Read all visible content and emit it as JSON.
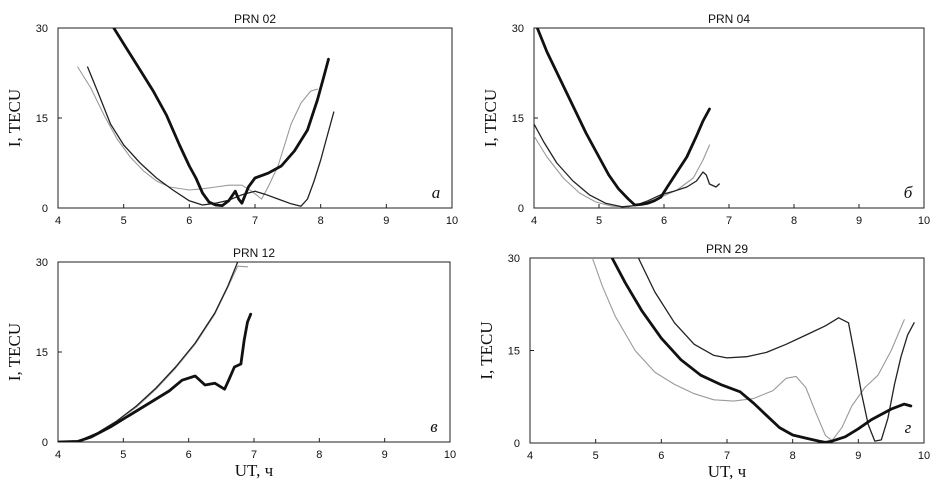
{
  "chart_data": [
    {
      "type": "line",
      "title": "PRN 02",
      "panel_letter": "а",
      "xlabel": "",
      "ylabel": "I, TECU",
      "xlim": [
        4,
        10
      ],
      "ylim": [
        0,
        30
      ],
      "xticks": [
        "4",
        "5",
        "6",
        "7",
        "8",
        "9",
        "10"
      ],
      "yticks": [
        "0",
        "15",
        "30"
      ],
      "series": [
        {
          "name": "thick",
          "style": "thick",
          "points": [
            [
              4.85,
              30
            ],
            [
              5.05,
              26.5
            ],
            [
              5.25,
              23
            ],
            [
              5.45,
              19.5
            ],
            [
              5.65,
              15.5
            ],
            [
              5.85,
              10.5
            ],
            [
              6.0,
              7
            ],
            [
              6.1,
              5
            ],
            [
              6.2,
              2.5
            ],
            [
              6.3,
              1
            ],
            [
              6.4,
              0.5
            ],
            [
              6.5,
              0.4
            ],
            [
              6.6,
              1.2
            ],
            [
              6.7,
              2.8
            ],
            [
              6.75,
              1.5
            ],
            [
              6.8,
              0.8
            ],
            [
              6.9,
              3.5
            ],
            [
              7.0,
              5
            ],
            [
              7.2,
              5.8
            ],
            [
              7.4,
              7
            ],
            [
              7.6,
              9.5
            ],
            [
              7.8,
              13
            ],
            [
              7.95,
              18
            ],
            [
              8.05,
              22
            ],
            [
              8.12,
              24.8
            ]
          ]
        },
        {
          "name": "thin-dark",
          "style": "thin-dark",
          "points": [
            [
              4.45,
              23.5
            ],
            [
              4.6,
              19.5
            ],
            [
              4.8,
              14
            ],
            [
              5.0,
              10.5
            ],
            [
              5.25,
              7.5
            ],
            [
              5.5,
              5
            ],
            [
              5.75,
              3
            ],
            [
              6.0,
              1.2
            ],
            [
              6.2,
              0.5
            ],
            [
              6.4,
              0.8
            ],
            [
              6.6,
              1.3
            ],
            [
              6.8,
              2.2
            ],
            [
              7.0,
              2.8
            ],
            [
              7.15,
              2.3
            ],
            [
              7.35,
              1.5
            ],
            [
              7.55,
              0.7
            ],
            [
              7.7,
              0.3
            ],
            [
              7.8,
              1.5
            ],
            [
              7.9,
              4.5
            ],
            [
              8.0,
              8
            ],
            [
              8.1,
              12
            ],
            [
              8.2,
              16
            ]
          ]
        },
        {
          "name": "thin-grey",
          "style": "thin-grey",
          "points": [
            [
              4.3,
              23.5
            ],
            [
              4.5,
              20
            ],
            [
              4.7,
              15.5
            ],
            [
              4.9,
              11.5
            ],
            [
              5.1,
              8.5
            ],
            [
              5.3,
              6.2
            ],
            [
              5.5,
              4.5
            ],
            [
              5.7,
              3.5
            ],
            [
              6.0,
              3
            ],
            [
              6.2,
              3.2
            ],
            [
              6.4,
              3.5
            ],
            [
              6.6,
              3.8
            ],
            [
              6.8,
              3.8
            ],
            [
              6.95,
              2.8
            ],
            [
              7.1,
              1.5
            ],
            [
              7.2,
              3.5
            ],
            [
              7.35,
              7
            ],
            [
              7.45,
              10.5
            ],
            [
              7.55,
              14
            ],
            [
              7.7,
              17.5
            ],
            [
              7.85,
              19.5
            ],
            [
              7.95,
              19.8
            ]
          ]
        }
      ]
    },
    {
      "type": "line",
      "title": "PRN 04",
      "panel_letter": "б",
      "xlabel": "",
      "ylabel": "I, TECU",
      "xlim": [
        4,
        10
      ],
      "ylim": [
        0,
        30
      ],
      "xticks": [
        "4",
        "5",
        "6",
        "7",
        "8",
        "9",
        "10"
      ],
      "yticks": [
        "0",
        "15",
        "30"
      ],
      "series": [
        {
          "name": "thick",
          "style": "thick",
          "points": [
            [
              4.05,
              30
            ],
            [
              4.2,
              26
            ],
            [
              4.4,
              21.5
            ],
            [
              4.6,
              17
            ],
            [
              4.8,
              12.5
            ],
            [
              5.0,
              8.5
            ],
            [
              5.15,
              5.5
            ],
            [
              5.3,
              3.2
            ],
            [
              5.45,
              1.5
            ],
            [
              5.55,
              0.5
            ],
            [
              5.65,
              0.6
            ],
            [
              5.75,
              0.8
            ],
            [
              5.85,
              1.2
            ],
            [
              5.95,
              1.8
            ],
            [
              6.05,
              3.5
            ],
            [
              6.2,
              6
            ],
            [
              6.35,
              8.5
            ],
            [
              6.5,
              12
            ],
            [
              6.6,
              14.5
            ],
            [
              6.7,
              16.5
            ]
          ]
        },
        {
          "name": "thin-dark",
          "style": "thin-dark",
          "points": [
            [
              4.0,
              14
            ],
            [
              4.15,
              11
            ],
            [
              4.35,
              7.5
            ],
            [
              4.6,
              4.5
            ],
            [
              4.85,
              2.2
            ],
            [
              5.1,
              0.8
            ],
            [
              5.35,
              0.2
            ],
            [
              5.55,
              0.4
            ],
            [
              5.75,
              1.2
            ],
            [
              5.95,
              2.2
            ],
            [
              6.15,
              2.8
            ],
            [
              6.35,
              3.5
            ],
            [
              6.5,
              4.5
            ],
            [
              6.6,
              6
            ],
            [
              6.65,
              5.5
            ],
            [
              6.7,
              4
            ],
            [
              6.8,
              3.5
            ],
            [
              6.85,
              4
            ]
          ]
        },
        {
          "name": "thin-grey",
          "style": "thin-grey",
          "points": [
            [
              4.0,
              12
            ],
            [
              4.2,
              8.5
            ],
            [
              4.45,
              5
            ],
            [
              4.7,
              2.5
            ],
            [
              4.95,
              1
            ],
            [
              5.2,
              0.3
            ],
            [
              5.45,
              0.2
            ],
            [
              5.7,
              0.8
            ],
            [
              5.95,
              1.8
            ],
            [
              6.2,
              3
            ],
            [
              6.45,
              5
            ],
            [
              6.6,
              8
            ],
            [
              6.7,
              10.5
            ]
          ]
        }
      ]
    },
    {
      "type": "line",
      "title": "PRN 12",
      "panel_letter": "в",
      "xlabel": "UT, ч",
      "ylabel": "I, TECU",
      "xlim": [
        4,
        10
      ],
      "ylim": [
        0,
        30
      ],
      "xticks": [
        "4",
        "5",
        "6",
        "7",
        "8",
        "9",
        "10"
      ],
      "yticks": [
        "0",
        "15",
        "30"
      ],
      "series": [
        {
          "name": "thick",
          "style": "thick",
          "points": [
            [
              4.0,
              0
            ],
            [
              4.3,
              0.1
            ],
            [
              4.5,
              0.8
            ],
            [
              4.8,
              2.5
            ],
            [
              5.1,
              4.5
            ],
            [
              5.4,
              6.5
            ],
            [
              5.7,
              8.5
            ],
            [
              5.9,
              10.3
            ],
            [
              6.1,
              11
            ],
            [
              6.25,
              9.5
            ],
            [
              6.4,
              9.8
            ],
            [
              6.55,
              8.8
            ],
            [
              6.62,
              10.5
            ],
            [
              6.7,
              12.5
            ],
            [
              6.8,
              13
            ],
            [
              6.85,
              17
            ],
            [
              6.9,
              20
            ],
            [
              6.95,
              21.3
            ]
          ]
        },
        {
          "name": "thin-dark",
          "style": "thin-dark",
          "points": [
            [
              4.3,
              0.1
            ],
            [
              4.6,
              1.5
            ],
            [
              4.9,
              3.5
            ],
            [
              5.2,
              6
            ],
            [
              5.5,
              9
            ],
            [
              5.8,
              12.5
            ],
            [
              6.1,
              16.5
            ],
            [
              6.4,
              21.5
            ],
            [
              6.6,
              26
            ],
            [
              6.75,
              30
            ]
          ]
        },
        {
          "name": "thin-grey",
          "style": "thin-grey",
          "points": [
            [
              4.3,
              0.1
            ],
            [
              4.6,
              1.5
            ],
            [
              4.9,
              3.5
            ],
            [
              5.2,
              5.8
            ],
            [
              5.5,
              8.8
            ],
            [
              5.8,
              12.3
            ],
            [
              6.1,
              16.3
            ],
            [
              6.4,
              21.3
            ],
            [
              6.6,
              25.8
            ],
            [
              6.75,
              29.3
            ],
            [
              6.9,
              29.2
            ]
          ]
        }
      ]
    },
    {
      "type": "line",
      "title": "PRN 29",
      "panel_letter": "г",
      "xlabel": "UT, ч",
      "ylabel": "I, TECU",
      "xlim": [
        4,
        10
      ],
      "ylim": [
        0,
        30
      ],
      "xticks": [
        "4",
        "5",
        "6",
        "7",
        "8",
        "9",
        "10"
      ],
      "yticks": [
        "0",
        "15",
        "30"
      ],
      "series": [
        {
          "name": "thick",
          "style": "thick",
          "points": [
            [
              5.25,
              30
            ],
            [
              5.45,
              26
            ],
            [
              5.7,
              21.5
            ],
            [
              6.0,
              17
            ],
            [
              6.3,
              13.5
            ],
            [
              6.6,
              11
            ],
            [
              6.9,
              9.5
            ],
            [
              7.2,
              8.3
            ],
            [
              7.4,
              6.5
            ],
            [
              7.6,
              4.5
            ],
            [
              7.8,
              2.5
            ],
            [
              8.0,
              1.3
            ],
            [
              8.2,
              0.8
            ],
            [
              8.4,
              0.3
            ],
            [
              8.5,
              0.1
            ],
            [
              8.6,
              0.3
            ],
            [
              8.8,
              1
            ],
            [
              9.0,
              2.3
            ],
            [
              9.2,
              3.8
            ],
            [
              9.5,
              5.5
            ],
            [
              9.7,
              6.3
            ],
            [
              9.8,
              6
            ]
          ]
        },
        {
          "name": "thin-dark",
          "style": "thin-dark",
          "points": [
            [
              5.65,
              30
            ],
            [
              5.9,
              24.5
            ],
            [
              6.2,
              19.5
            ],
            [
              6.5,
              16
            ],
            [
              6.8,
              14.2
            ],
            [
              7.0,
              13.8
            ],
            [
              7.3,
              14
            ],
            [
              7.6,
              14.7
            ],
            [
              7.9,
              16
            ],
            [
              8.2,
              17.5
            ],
            [
              8.5,
              19
            ],
            [
              8.7,
              20.3
            ],
            [
              8.85,
              19.5
            ],
            [
              8.95,
              14
            ],
            [
              9.05,
              8
            ],
            [
              9.15,
              3
            ],
            [
              9.25,
              0.3
            ],
            [
              9.35,
              0.5
            ],
            [
              9.45,
              4
            ],
            [
              9.55,
              9.5
            ],
            [
              9.65,
              14
            ],
            [
              9.75,
              17.5
            ],
            [
              9.85,
              19.5
            ]
          ]
        },
        {
          "name": "thin-grey",
          "style": "thin-grey",
          "points": [
            [
              4.95,
              30
            ],
            [
              5.1,
              25.5
            ],
            [
              5.3,
              20.5
            ],
            [
              5.6,
              15
            ],
            [
              5.9,
              11.5
            ],
            [
              6.2,
              9.5
            ],
            [
              6.5,
              8
            ],
            [
              6.8,
              7
            ],
            [
              7.1,
              6.8
            ],
            [
              7.4,
              7.2
            ],
            [
              7.7,
              8.5
            ],
            [
              7.9,
              10.5
            ],
            [
              8.05,
              10.8
            ],
            [
              8.2,
              9
            ],
            [
              8.35,
              5
            ],
            [
              8.5,
              1.2
            ],
            [
              8.6,
              0.4
            ],
            [
              8.75,
              2.5
            ],
            [
              8.9,
              6
            ],
            [
              9.1,
              9
            ],
            [
              9.3,
              11
            ],
            [
              9.5,
              15
            ],
            [
              9.7,
              20
            ]
          ]
        }
      ]
    }
  ]
}
